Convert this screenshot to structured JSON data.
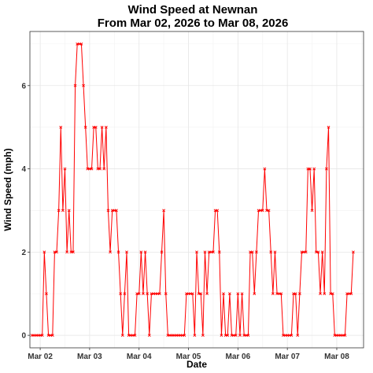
{
  "chart_data": {
    "type": "line",
    "title": "Wind Speed at Newnan",
    "subtitle": "From Mar 02, 2026 to Mar 08, 2026",
    "xlabel": "Date",
    "ylabel": "Wind Speed (mph)",
    "ylim": [
      -0.3,
      7.3
    ],
    "xlim": [
      "2026-03-01 19:00",
      "2026-03-08 13:00"
    ],
    "yticks": [
      0,
      2,
      4,
      6
    ],
    "xticks": [
      {
        "x": "2026-03-02 00:00",
        "label": "Mar 02"
      },
      {
        "x": "2026-03-03 00:00",
        "label": "Mar 03"
      },
      {
        "x": "2026-03-04 00:00",
        "label": "Mar 04"
      },
      {
        "x": "2026-03-05 00:00",
        "label": "Mar 05"
      },
      {
        "x": "2026-03-06 00:00",
        "label": "Mar 06"
      },
      {
        "x": "2026-03-07 00:00",
        "label": "Mar 07"
      },
      {
        "x": "2026-03-08 00:00",
        "label": "Mar 08"
      }
    ],
    "grid": true,
    "line_color": "#ff0000",
    "marker": "x",
    "x_start": "2026-03-01 20:00",
    "x_step_hours": 1,
    "values": [
      0,
      0,
      0,
      0,
      0,
      0,
      2,
      1,
      0,
      0,
      0,
      2,
      2,
      3,
      5,
      3,
      4,
      2,
      3,
      2,
      2,
      6,
      7,
      7,
      7,
      6,
      5,
      4,
      4,
      4,
      5,
      5,
      4,
      4,
      5,
      4,
      5,
      3,
      2,
      3,
      3,
      3,
      2,
      1,
      0,
      1,
      2,
      0,
      0,
      0,
      0,
      1,
      1,
      2,
      1,
      2,
      1,
      0,
      1,
      1,
      1,
      1,
      1,
      2,
      3,
      1,
      0,
      0,
      0,
      0,
      0,
      0,
      0,
      0,
      0,
      1,
      1,
      1,
      1,
      0,
      2,
      1,
      1,
      0,
      2,
      1,
      2,
      2,
      2,
      3,
      3,
      2,
      0,
      1,
      0,
      0,
      1,
      0,
      0,
      0,
      1,
      0,
      1,
      0,
      0,
      0,
      2,
      2,
      1,
      2,
      3,
      3,
      3,
      4,
      3,
      3,
      2,
      1,
      2,
      1,
      1,
      1,
      0,
      0,
      0,
      0,
      0,
      1,
      1,
      0,
      1,
      2,
      2,
      2,
      4,
      4,
      3,
      4,
      2,
      2,
      1,
      2,
      1,
      4,
      5,
      1,
      1,
      0,
      0,
      0,
      0,
      0,
      0,
      1,
      1,
      1,
      2
    ]
  }
}
